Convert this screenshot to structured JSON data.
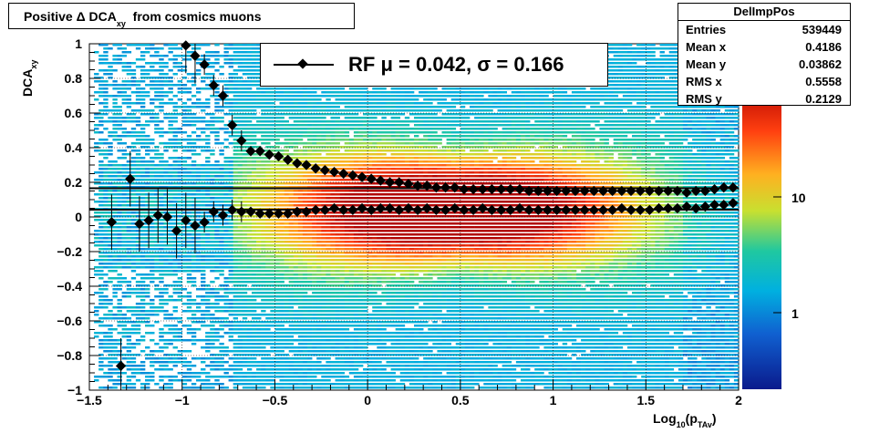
{
  "title": {
    "main": "Positive Δ DCA",
    "sub": "xy",
    "rest": "from cosmics muons"
  },
  "stats": {
    "name": "DelImpPos",
    "rows": [
      {
        "label": "Entries",
        "value": "539449"
      },
      {
        "label": "Mean x",
        "value": "0.4186"
      },
      {
        "label": "Mean y",
        "value": "0.03862"
      },
      {
        "label": "RMS x",
        "value": "0.5558"
      },
      {
        "label": "RMS y",
        "value": "0.2129"
      }
    ]
  },
  "legend": {
    "text": "RF μ =  0.042, σ =   0.166"
  },
  "axes": {
    "ylabel_main": "DCA",
    "ylabel_sub": "xy",
    "xlabel_main": "Log",
    "xlabel_sub1": "10",
    "xlabel_mid": "(p",
    "xlabel_sub2": "TAv",
    "xlabel_end": ")"
  },
  "chart_data": {
    "type": "heatmap",
    "xlim": [
      -1.5,
      2
    ],
    "ylim": [
      -1,
      1
    ],
    "grid": true,
    "z_scale": "log",
    "z_ticks": [
      "1",
      "10"
    ],
    "x_ticks": [
      "−1.5",
      "−1",
      "−0.5",
      "0",
      "0.5",
      "1",
      "1.5",
      "2"
    ],
    "y_ticks": [
      "−1",
      "−0.8",
      "−0.6",
      "−0.4",
      "−0.2",
      "0",
      "0.2",
      "0.4",
      "0.6",
      "0.8",
      "1"
    ],
    "mean_series": {
      "x": [
        -1.38,
        -1.33,
        -1.28,
        -1.23,
        -1.18,
        -1.13,
        -1.08,
        -1.03,
        -0.98,
        -0.93,
        -0.88,
        -0.83,
        -0.78,
        -0.73,
        -0.68,
        -0.63,
        -0.58,
        -0.53,
        -0.48,
        -0.43,
        -0.38,
        -0.33,
        -0.28,
        -0.23,
        -0.18,
        -0.13,
        -0.08,
        -0.03,
        0.02,
        0.07,
        0.12,
        0.17,
        0.22,
        0.27,
        0.32,
        0.37,
        0.42,
        0.47,
        0.52,
        0.57,
        0.62,
        0.67,
        0.72,
        0.77,
        0.82,
        0.87,
        0.92,
        0.97,
        1.02,
        1.07,
        1.12,
        1.17,
        1.22,
        1.27,
        1.32,
        1.37,
        1.42,
        1.47,
        1.52,
        1.57,
        1.62,
        1.67,
        1.72,
        1.77,
        1.82,
        1.87,
        1.92,
        1.97
      ],
      "y": [
        -0.03,
        -0.86,
        0.22,
        -0.04,
        -0.02,
        0.01,
        0.0,
        -0.08,
        -0.02,
        -0.05,
        -0.03,
        0.03,
        0.01,
        0.04,
        0.03,
        0.03,
        0.02,
        0.02,
        0.02,
        0.02,
        0.03,
        0.03,
        0.04,
        0.04,
        0.05,
        0.04,
        0.04,
        0.05,
        0.04,
        0.05,
        0.05,
        0.04,
        0.05,
        0.04,
        0.05,
        0.04,
        0.04,
        0.05,
        0.04,
        0.04,
        0.05,
        0.04,
        0.04,
        0.04,
        0.05,
        0.04,
        0.04,
        0.04,
        0.04,
        0.04,
        0.04,
        0.04,
        0.04,
        0.04,
        0.04,
        0.05,
        0.04,
        0.04,
        0.04,
        0.05,
        0.05,
        0.05,
        0.06,
        0.05,
        0.06,
        0.07,
        0.07,
        0.08
      ]
    },
    "sigma_series": {
      "x": [
        -0.98,
        -0.93,
        -0.88,
        -0.83,
        -0.78,
        -0.73,
        -0.68,
        -0.63,
        -0.58,
        -0.53,
        -0.48,
        -0.43,
        -0.38,
        -0.33,
        -0.28,
        -0.23,
        -0.18,
        -0.13,
        -0.08,
        -0.03,
        0.02,
        0.07,
        0.12,
        0.17,
        0.22,
        0.27,
        0.32,
        0.37,
        0.42,
        0.47,
        0.52,
        0.57,
        0.62,
        0.67,
        0.72,
        0.77,
        0.82,
        0.87,
        0.92,
        0.97,
        1.02,
        1.07,
        1.12,
        1.17,
        1.22,
        1.27,
        1.32,
        1.37,
        1.42,
        1.47,
        1.52,
        1.57,
        1.62,
        1.67,
        1.72,
        1.77,
        1.82,
        1.87,
        1.92,
        1.97
      ],
      "y": [
        0.99,
        0.93,
        0.88,
        0.76,
        0.7,
        0.53,
        0.44,
        0.38,
        0.38,
        0.36,
        0.35,
        0.33,
        0.31,
        0.3,
        0.28,
        0.27,
        0.26,
        0.25,
        0.24,
        0.23,
        0.22,
        0.21,
        0.2,
        0.2,
        0.19,
        0.18,
        0.18,
        0.17,
        0.17,
        0.17,
        0.16,
        0.16,
        0.16,
        0.16,
        0.16,
        0.16,
        0.16,
        0.15,
        0.15,
        0.15,
        0.15,
        0.15,
        0.15,
        0.15,
        0.15,
        0.15,
        0.15,
        0.15,
        0.15,
        0.15,
        0.15,
        0.15,
        0.15,
        0.15,
        0.14,
        0.15,
        0.15,
        0.16,
        0.17,
        0.17
      ]
    },
    "fit_lines": [
      0.042,
      0.166
    ]
  }
}
